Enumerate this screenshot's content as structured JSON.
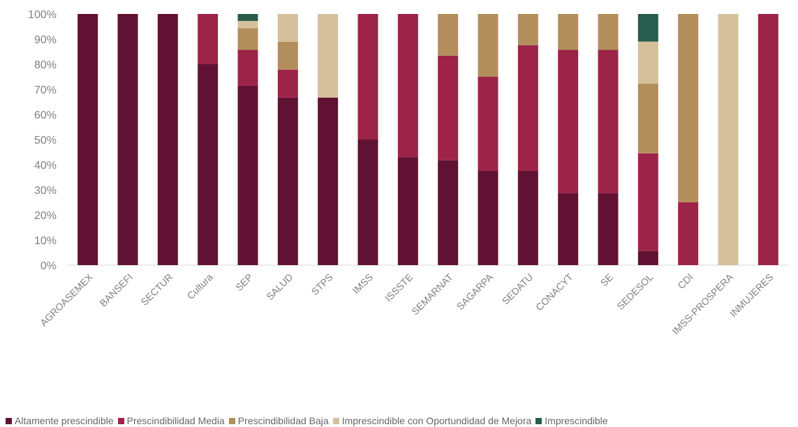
{
  "chart_data": {
    "type": "bar",
    "stacked": true,
    "percent": true,
    "title": "",
    "xlabel": "",
    "ylabel": "",
    "ylim": [
      0,
      100
    ],
    "yticks": [
      "0%",
      "10%",
      "20%",
      "30%",
      "40%",
      "50%",
      "60%",
      "70%",
      "80%",
      "90%",
      "100%"
    ],
    "grid": false,
    "legend_position": "bottom",
    "categories": [
      "AGROASEMEX",
      "BANSEFI",
      "SECTUR",
      "Cultura",
      "SEP",
      "SALUD",
      "STPS",
      "IMSS",
      "ISSSTE",
      "SEMARNAT",
      "SAGARPA",
      "SEDATU",
      "CONACYT",
      "SE",
      "SEDESOL",
      "CDI",
      "IMSS-PROSPERA",
      "INMUJERES"
    ],
    "series": [
      {
        "name": "Altamente prescindible",
        "color": "#611232",
        "values": [
          100,
          100,
          100,
          80,
          71.4,
          66.7,
          66.7,
          50,
          42.9,
          41.7,
          37.5,
          37.5,
          28.6,
          28.6,
          5.6,
          0,
          0,
          0
        ]
      },
      {
        "name": "Prescindibilidad Media",
        "color": "#9D2449",
        "values": [
          0,
          0,
          0,
          20,
          14.3,
          11.1,
          0,
          50,
          57.1,
          41.7,
          37.5,
          50,
          57.1,
          57.1,
          38.9,
          25,
          0,
          100
        ]
      },
      {
        "name": "Prescindibilidad Baja",
        "color": "#B38E5D",
        "values": [
          0,
          0,
          0,
          0,
          8.6,
          11.1,
          0,
          0,
          0,
          16.6,
          25,
          12.5,
          14.3,
          14.3,
          27.8,
          75,
          0,
          0
        ]
      },
      {
        "name": "Imprescindible con Oportundidad de Mejora",
        "color": "#D4C19C",
        "values": [
          0,
          0,
          0,
          0,
          2.9,
          11.1,
          33.3,
          0,
          0,
          0,
          0,
          0,
          0,
          0,
          16.7,
          0,
          100,
          0
        ]
      },
      {
        "name": "Imprescindible",
        "color": "#285C4D",
        "values": [
          0,
          0,
          0,
          0,
          2.8,
          0,
          0,
          0,
          0,
          0,
          0,
          0,
          0,
          0,
          11.0,
          0,
          0,
          0
        ]
      }
    ]
  }
}
